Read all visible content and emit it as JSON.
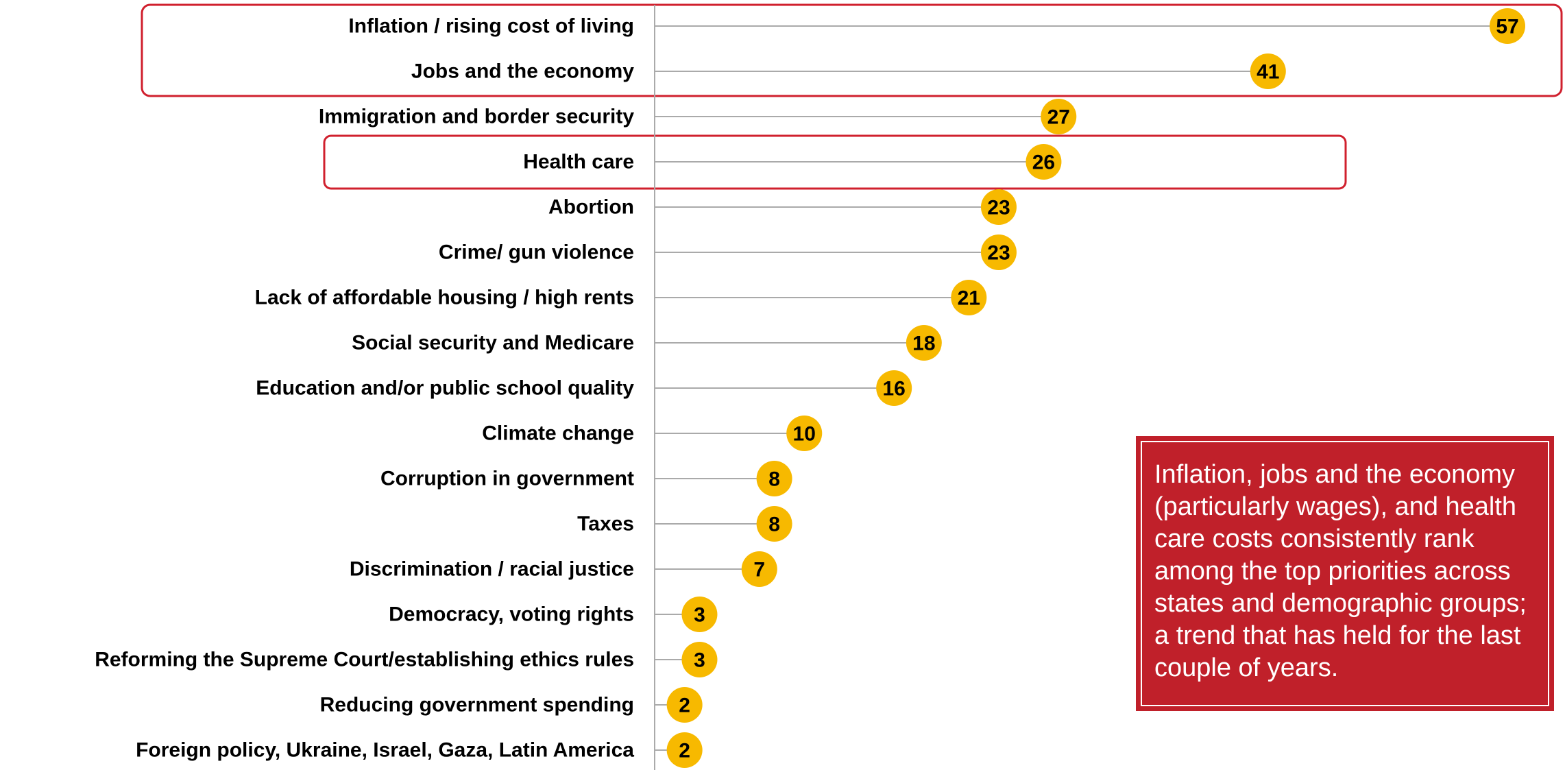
{
  "chart_data": {
    "type": "lollipop",
    "categories": [
      "Inflation / rising cost of living",
      "Jobs and the economy",
      "Immigration and border security",
      "Health care",
      "Abortion",
      "Crime/ gun violence",
      "Lack of affordable housing / high rents",
      "Social security and Medicare",
      "Education and/or public school quality",
      "Climate change",
      "Corruption in government",
      "Taxes",
      "Discrimination / racial justice",
      "Democracy, voting rights",
      "Reforming the Supreme Court/establishing ethics rules",
      "Reducing government spending",
      "Foreign policy, Ukraine, Israel, Gaza, Latin America"
    ],
    "values": [
      57,
      41,
      27,
      26,
      23,
      23,
      21,
      18,
      16,
      10,
      8,
      8,
      7,
      3,
      3,
      2,
      2
    ],
    "color": "#f7b900",
    "annotation": "Inflation, jobs and the economy (particularly wages), and health care costs consistently rank among the top priorities across states and demographic groups; a trend that has held for the last couple of years."
  }
}
